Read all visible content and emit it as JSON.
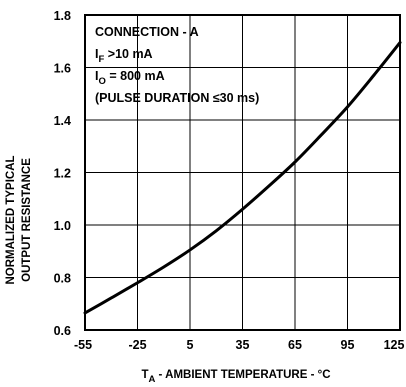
{
  "chart_data": {
    "type": "line",
    "x_ticks": [
      "-55",
      "-25",
      "5",
      "35",
      "65",
      "95",
      "125"
    ],
    "y_ticks": [
      "0.6",
      "0.8",
      "1.0",
      "1.2",
      "1.4",
      "1.6",
      "1.8"
    ],
    "xlim": [
      -55,
      125
    ],
    "ylim": [
      0.6,
      1.8
    ],
    "grid": true,
    "ylabel_lines": [
      "NORMALIZED TYPICAL",
      "OUTPUT RESISTANCE"
    ],
    "xlabel": {
      "main": "T",
      "sub": "A",
      "rest": " - AMBIENT TEMPERATURE - °C"
    },
    "annotation": {
      "line1": "CONNECTION - A",
      "line2": {
        "main": "I",
        "sub": "F",
        "rest": " >10 mA"
      },
      "line3": {
        "main": "I",
        "sub": "O",
        "rest": " = 800 mA"
      },
      "line4": "(PULSE DURATION ≤30 ms)"
    },
    "series": [
      {
        "x": [
          -55,
          -40,
          -25,
          -10,
          5,
          20,
          35,
          50,
          65,
          80,
          95,
          110,
          125
        ],
        "y": [
          0.665,
          0.722,
          0.78,
          0.84,
          0.905,
          0.978,
          1.06,
          1.148,
          1.24,
          1.343,
          1.45,
          1.57,
          1.695
        ]
      }
    ]
  }
}
